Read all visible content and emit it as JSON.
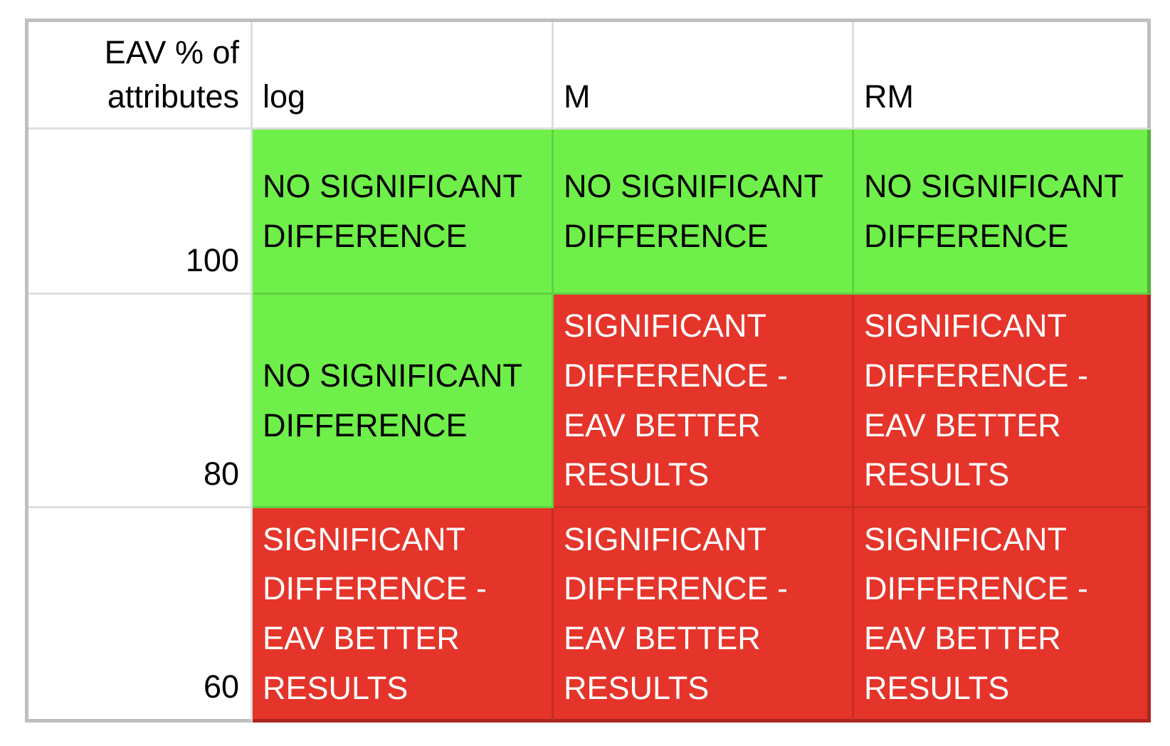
{
  "colors": {
    "green": "#6FEF4A",
    "red": "#E5342A",
    "grid_outer_border": "#BFBFBF",
    "text_on_green": "#000000",
    "text_on_red": "#FFFFFF"
  },
  "table": {
    "corner_header": "EAV % of attributes",
    "column_headers": [
      "log",
      "M",
      "RM"
    ],
    "rows": [
      {
        "label": "100",
        "cells": [
          {
            "text": "NO SIGNIFICANT DIFFERENCE",
            "status": "green"
          },
          {
            "text": "NO SIGNIFICANT DIFFERENCE",
            "status": "green"
          },
          {
            "text": "NO SIGNIFICANT DIFFERENCE",
            "status": "green"
          }
        ]
      },
      {
        "label": "80",
        "cells": [
          {
            "text": "NO SIGNIFICANT DIFFERENCE",
            "status": "green"
          },
          {
            "text": "SIGNIFICANT DIFFERENCE - EAV BETTER RESULTS",
            "status": "red"
          },
          {
            "text": "SIGNIFICANT DIFFERENCE - EAV BETTER RESULTS",
            "status": "red"
          }
        ]
      },
      {
        "label": "60",
        "cells": [
          {
            "text": "SIGNIFICANT DIFFERENCE - EAV BETTER RESULTS",
            "status": "red"
          },
          {
            "text": "SIGNIFICANT DIFFERENCE - EAV BETTER RESULTS",
            "status": "red"
          },
          {
            "text": "SIGNIFICANT DIFFERENCE - EAV BETTER RESULTS",
            "status": "red"
          }
        ]
      }
    ]
  },
  "chart_data": {
    "type": "table",
    "title": "",
    "columns": [
      "EAV % of attributes",
      "log",
      "M",
      "RM"
    ],
    "rows": [
      {
        "eav_pct_of_attributes": 100,
        "log": "NO SIGNIFICANT DIFFERENCE",
        "M": "NO SIGNIFICANT DIFFERENCE",
        "RM": "NO SIGNIFICANT DIFFERENCE"
      },
      {
        "eav_pct_of_attributes": 80,
        "log": "NO SIGNIFICANT DIFFERENCE",
        "M": "SIGNIFICANT DIFFERENCE - EAV BETTER RESULTS",
        "RM": "SIGNIFICANT DIFFERENCE - EAV BETTER RESULTS"
      },
      {
        "eav_pct_of_attributes": 60,
        "log": "SIGNIFICANT DIFFERENCE - EAV BETTER RESULTS",
        "M": "SIGNIFICANT DIFFERENCE - EAV BETTER RESULTS",
        "RM": "SIGNIFICANT DIFFERENCE - EAV BETTER RESULTS"
      }
    ],
    "cell_status": [
      [
        "green",
        "green",
        "green"
      ],
      [
        "green",
        "red",
        "red"
      ],
      [
        "red",
        "red",
        "red"
      ]
    ],
    "legend": {
      "green": "NO SIGNIFICANT DIFFERENCE",
      "red": "SIGNIFICANT DIFFERENCE - EAV BETTER RESULTS"
    }
  }
}
